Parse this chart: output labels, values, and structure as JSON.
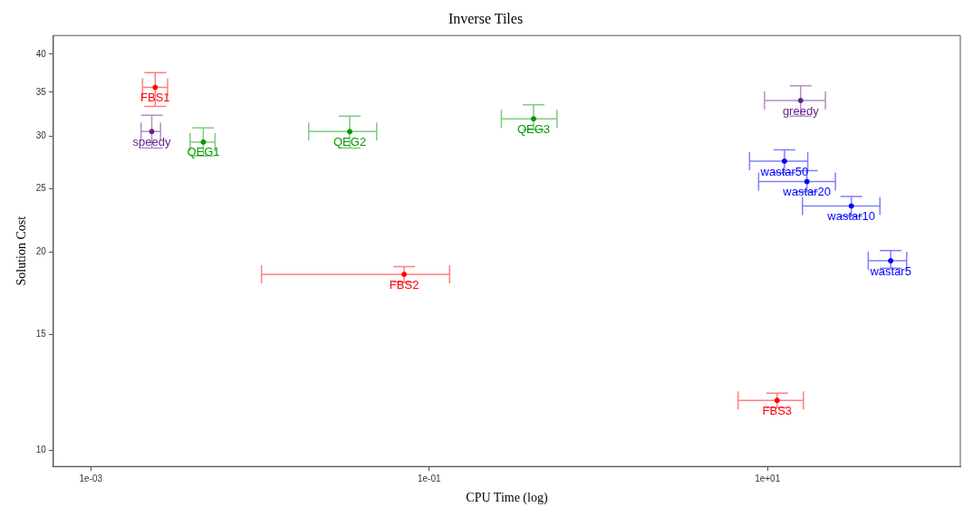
{
  "chart_data": {
    "type": "scatter",
    "title": "Inverse Tiles",
    "xlabel": "CPU Time (log)",
    "ylabel": "Solution Cost",
    "log": "xy",
    "grid": false,
    "legend": false,
    "marker": "circle",
    "xlim": [
      0.00063,
      138
    ],
    "xticks": [
      {
        "value": 0.001,
        "label": "1e-03"
      },
      {
        "value": 0.1,
        "label": "1e-01"
      },
      {
        "value": 10,
        "label": "1e+01"
      }
    ],
    "ylim": [
      9.44,
      42.7
    ],
    "yticks": [
      10,
      15,
      20,
      25,
      30,
      35,
      40
    ],
    "series": [
      {
        "name": "FBS1",
        "color": "#ff0000",
        "x": [
          0.0024
        ],
        "values": [
          35.6
        ],
        "errors": [
          [
            33.3,
            37.5
          ]
        ],
        "xerrors": [
          [
            0.00202,
            0.00284
          ]
        ]
      },
      {
        "name": "speedy",
        "color": "#68228b",
        "x": [
          0.00229
        ],
        "values": [
          30.5
        ],
        "errors": [
          [
            28.8,
            32.3
          ]
        ],
        "xerrors": [
          [
            0.00198,
            0.00258
          ]
        ]
      },
      {
        "name": "QEG1",
        "color": "#009900",
        "x": [
          0.00462
        ],
        "values": [
          29.4
        ],
        "errors": [
          [
            28.0,
            30.9
          ]
        ],
        "xerrors": [
          [
            0.00386,
            0.00542
          ]
        ]
      },
      {
        "name": "QEG2",
        "color": "#009900",
        "x": [
          0.0339
        ],
        "values": [
          30.5
        ],
        "errors": [
          [
            28.8,
            32.2
          ]
        ],
        "xerrors": [
          [
            0.0194,
            0.0489
          ]
        ]
      },
      {
        "name": "QEG3",
        "color": "#009900",
        "x": [
          0.414
        ],
        "values": [
          31.9
        ],
        "errors": [
          [
            30.7,
            33.5
          ]
        ],
        "xerrors": [
          [
            0.267,
            0.569
          ]
        ]
      },
      {
        "name": "FBS2",
        "color": "#ff0000",
        "x": [
          0.0711
        ],
        "values": [
          18.5
        ],
        "errors": [
          [
            18.0,
            19.0
          ]
        ],
        "xerrors": [
          [
            0.0102,
            0.132
          ]
        ]
      },
      {
        "name": "greedy",
        "color": "#68228b",
        "x": [
          15.7
        ],
        "values": [
          34.0
        ],
        "errors": [
          [
            32.2,
            35.8
          ]
        ],
        "xerrors": [
          [
            9.6,
            22.0
          ]
        ]
      },
      {
        "name": "wastar50",
        "color": "#0000ff",
        "x": [
          12.6
        ],
        "values": [
          27.5
        ],
        "errors": [
          [
            26.4,
            28.6
          ]
        ],
        "xerrors": [
          [
            7.83,
            17.3
          ]
        ]
      },
      {
        "name": "wastar20",
        "color": "#0000ff",
        "x": [
          17.1
        ],
        "values": [
          25.6
        ],
        "errors": [
          [
            24.7,
            26.6
          ]
        ],
        "xerrors": [
          [
            8.86,
            25.2
          ]
        ]
      },
      {
        "name": "wastar10",
        "color": "#0000ff",
        "x": [
          31.3
        ],
        "values": [
          23.5
        ],
        "errors": [
          [
            22.7,
            24.3
          ]
        ],
        "xerrors": [
          [
            16.1,
            46.2
          ]
        ]
      },
      {
        "name": "wastar5",
        "color": "#0000ff",
        "x": [
          53.5
        ],
        "values": [
          19.4
        ],
        "errors": [
          [
            18.9,
            20.1
          ]
        ],
        "xerrors": [
          [
            39.4,
            66.5
          ]
        ]
      },
      {
        "name": "FBS3",
        "color": "#ff0000",
        "x": [
          11.4
        ],
        "values": [
          11.9
        ],
        "errors": [
          [
            11.6,
            12.2
          ]
        ],
        "xerrors": [
          [
            6.7,
            16.3
          ]
        ]
      }
    ]
  }
}
